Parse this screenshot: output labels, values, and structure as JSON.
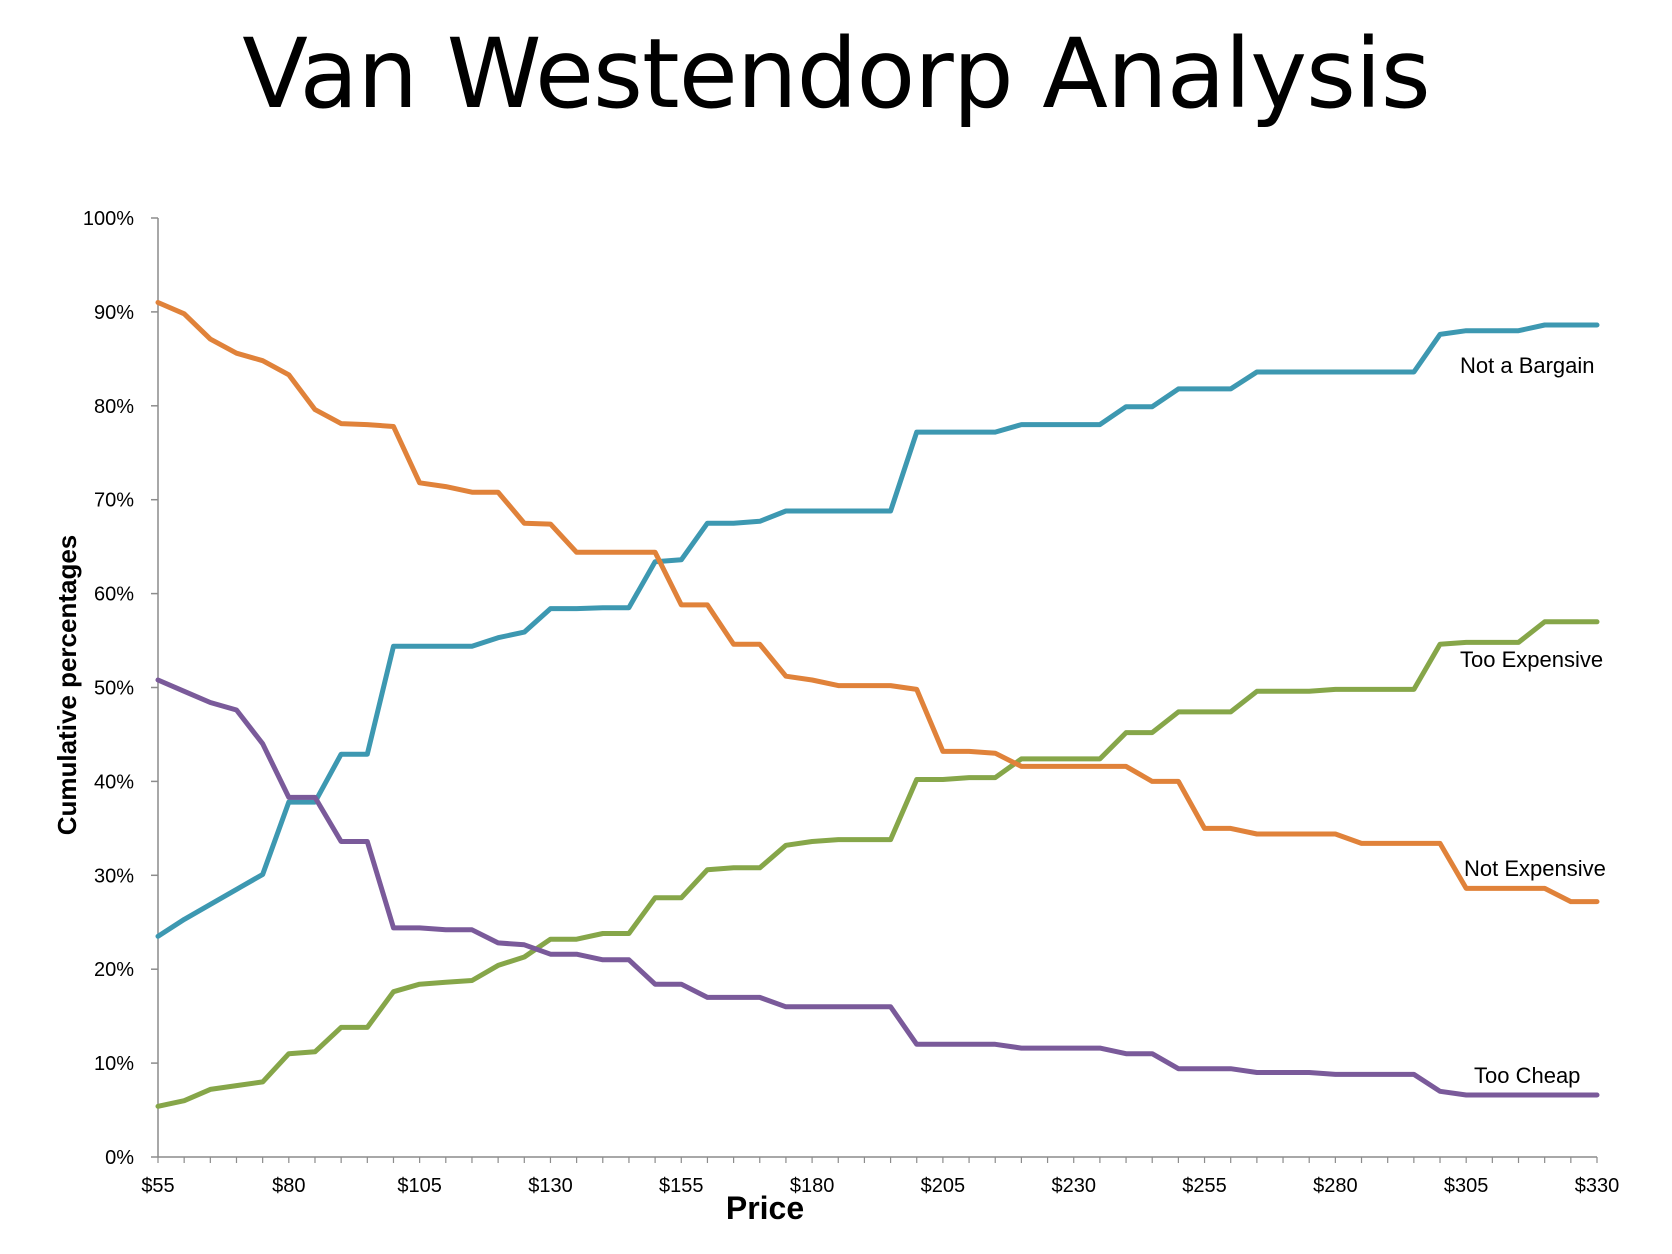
{
  "title": "Van Westendorp Analysis",
  "chart_data": {
    "type": "line",
    "title": "Van Westendorp Analysis",
    "xlabel": "Price",
    "ylabel": "Cumulative percentages",
    "xlim": [
      55,
      330
    ],
    "ylim": [
      0,
      100
    ],
    "x_tick_labels": [
      "$55",
      "$80",
      "$105",
      "$130",
      "$155",
      "$180",
      "$205",
      "$230",
      "$255",
      "$280",
      "$305",
      "$330"
    ],
    "x_tick_values": [
      55,
      80,
      105,
      130,
      155,
      180,
      205,
      230,
      255,
      280,
      305,
      330
    ],
    "y_tick_labels": [
      "0%",
      "10%",
      "20%",
      "30%",
      "40%",
      "50%",
      "60%",
      "70%",
      "80%",
      "90%",
      "100%"
    ],
    "y_tick_values": [
      0,
      10,
      20,
      30,
      40,
      50,
      60,
      70,
      80,
      90,
      100
    ],
    "grid": false,
    "legend": "inline labels at right end of lines",
    "x": [
      55,
      60,
      65,
      70,
      75,
      80,
      85,
      90,
      95,
      100,
      105,
      110,
      115,
      120,
      125,
      130,
      135,
      140,
      145,
      150,
      155,
      160,
      165,
      170,
      175,
      180,
      185,
      190,
      195,
      200,
      205,
      210,
      215,
      220,
      225,
      230,
      235,
      240,
      245,
      250,
      255,
      260,
      265,
      270,
      275,
      280,
      285,
      290,
      295,
      300,
      305,
      310,
      315,
      320,
      325,
      330
    ],
    "series": [
      {
        "name": "Not a Bargain",
        "color": "#3d98b1",
        "values": [
          23.5,
          25.3,
          26.9,
          28.5,
          30.1,
          37.8,
          37.8,
          42.9,
          42.9,
          54.4,
          54.4,
          54.4,
          54.4,
          55.3,
          55.9,
          58.4,
          58.4,
          58.5,
          58.5,
          63.4,
          63.6,
          67.5,
          67.5,
          67.7,
          68.8,
          68.8,
          68.8,
          68.8,
          68.8,
          77.2,
          77.2,
          77.2,
          77.2,
          78.0,
          78.0,
          78.0,
          78.0,
          79.9,
          79.9,
          81.8,
          81.8,
          81.8,
          83.6,
          83.6,
          83.6,
          83.6,
          83.6,
          83.6,
          83.6,
          87.6,
          88.0,
          88.0,
          88.0,
          88.6,
          88.6,
          88.6
        ]
      },
      {
        "name": "Too Expensive",
        "color": "#86a649",
        "values": [
          5.4,
          6.0,
          7.2,
          7.6,
          8.0,
          11.0,
          11.2,
          13.8,
          13.8,
          17.6,
          18.4,
          18.6,
          18.8,
          20.4,
          21.3,
          23.2,
          23.2,
          23.8,
          23.8,
          27.6,
          27.6,
          30.6,
          30.8,
          30.8,
          33.2,
          33.6,
          33.8,
          33.8,
          33.8,
          40.2,
          40.2,
          40.4,
          40.4,
          42.4,
          42.4,
          42.4,
          42.4,
          45.2,
          45.2,
          47.4,
          47.4,
          47.4,
          49.6,
          49.6,
          49.6,
          49.8,
          49.8,
          49.8,
          49.8,
          54.6,
          54.8,
          54.8,
          54.8,
          57.0,
          57.0,
          57.0
        ]
      },
      {
        "name": "Not Expensive",
        "color": "#e0823a",
        "values": [
          91.0,
          89.8,
          87.1,
          85.6,
          84.8,
          83.3,
          79.6,
          78.1,
          78.0,
          77.8,
          71.8,
          71.4,
          70.8,
          70.8,
          67.5,
          67.4,
          64.4,
          64.4,
          64.4,
          64.4,
          58.8,
          58.8,
          54.6,
          54.6,
          51.2,
          50.8,
          50.2,
          50.2,
          50.2,
          49.8,
          43.2,
          43.2,
          43.0,
          41.6,
          41.6,
          41.6,
          41.6,
          41.6,
          40.0,
          40.0,
          35.0,
          35.0,
          34.4,
          34.4,
          34.4,
          34.4,
          33.4,
          33.4,
          33.4,
          33.4,
          28.6,
          28.6,
          28.6,
          28.6,
          27.2,
          27.2
        ]
      },
      {
        "name": "Too Cheap",
        "color": "#7a5a9a",
        "values": [
          50.8,
          49.6,
          48.4,
          47.6,
          44.0,
          38.3,
          38.3,
          33.6,
          33.6,
          24.4,
          24.4,
          24.2,
          24.2,
          22.8,
          22.6,
          21.6,
          21.6,
          21.0,
          21.0,
          18.4,
          18.4,
          17.0,
          17.0,
          17.0,
          16.0,
          16.0,
          16.0,
          16.0,
          16.0,
          12.0,
          12.0,
          12.0,
          12.0,
          11.6,
          11.6,
          11.6,
          11.6,
          11.0,
          11.0,
          9.4,
          9.4,
          9.4,
          9.0,
          9.0,
          9.0,
          8.8,
          8.8,
          8.8,
          8.8,
          7.0,
          6.6,
          6.6,
          6.6,
          6.6,
          6.6,
          6.6
        ]
      }
    ]
  }
}
